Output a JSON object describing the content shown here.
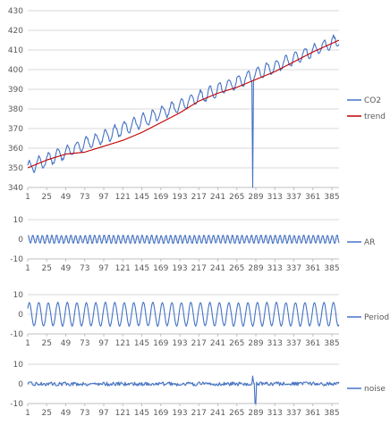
{
  "colors": {
    "series": "#4472C4",
    "trend": "#C00000",
    "grid": "#D9D9D9",
    "axis": "#BFBFBF",
    "text": "#595959"
  },
  "chart_data": [
    {
      "type": "line",
      "x_start": 1,
      "x_end": 394,
      "x_tick_labels": [
        "1",
        "25",
        "49",
        "73",
        "97",
        "121",
        "145",
        "169",
        "193",
        "217",
        "241",
        "265",
        "289",
        "313",
        "337",
        "361",
        "385"
      ],
      "ylim": [
        340,
        430
      ],
      "y_ticks": [
        340,
        350,
        360,
        370,
        380,
        390,
        400,
        410,
        420,
        430
      ],
      "grid": "horizontal",
      "legend_position": "right",
      "series": [
        {
          "name": "CO2",
          "color": "#4472C4",
          "trend_start": 350,
          "trend_end": 415,
          "seasonal_amplitude": 3.2,
          "period": 12,
          "dip": {
            "x": 285,
            "y": 340
          }
        },
        {
          "name": "trend",
          "color": "#C00000",
          "points": [
            [
              1,
              350
            ],
            [
              25,
              354
            ],
            [
              49,
              357
            ],
            [
              73,
              358
            ],
            [
              97,
              361
            ],
            [
              121,
              364
            ],
            [
              145,
              368
            ],
            [
              169,
              373
            ],
            [
              193,
              378
            ],
            [
              217,
              384
            ],
            [
              241,
              388
            ],
            [
              265,
              391
            ],
            [
              289,
              395
            ],
            [
              313,
              399
            ],
            [
              337,
              404
            ],
            [
              361,
              409
            ],
            [
              394,
              415
            ]
          ]
        }
      ]
    },
    {
      "type": "line",
      "x_start": 1,
      "x_end": 394,
      "x_tick_labels": [
        "1",
        "25",
        "49",
        "73",
        "97",
        "121",
        "145",
        "169",
        "193",
        "217",
        "241",
        "265",
        "289",
        "313",
        "337",
        "361",
        "385"
      ],
      "ylim": [
        -10,
        10
      ],
      "y_ticks": [
        -10,
        0,
        10
      ],
      "grid": "horizontal",
      "legend_position": "right",
      "series": [
        {
          "name": "AR",
          "color": "#4472C4",
          "amplitude": 2.2,
          "period": 6
        }
      ]
    },
    {
      "type": "line",
      "x_start": 1,
      "x_end": 394,
      "x_tick_labels": [
        "1",
        "25",
        "49",
        "73",
        "97",
        "121",
        "145",
        "169",
        "193",
        "217",
        "241",
        "265",
        "289",
        "313",
        "337",
        "361",
        "385"
      ],
      "ylim": [
        -10,
        10
      ],
      "y_ticks": [
        -10,
        0,
        10
      ],
      "grid": "horizontal",
      "legend_position": "right",
      "series": [
        {
          "name": "Period",
          "color": "#4472C4",
          "amplitude": 6,
          "period": 12
        }
      ]
    },
    {
      "type": "line",
      "x_start": 1,
      "x_end": 394,
      "x_tick_labels": [
        "1",
        "25",
        "49",
        "73",
        "97",
        "121",
        "145",
        "169",
        "193",
        "217",
        "241",
        "265",
        "289",
        "313",
        "337",
        "361",
        "385"
      ],
      "ylim": [
        -10,
        10
      ],
      "y_ticks": [
        -10,
        0,
        10
      ],
      "grid": "horizontal",
      "legend_position": "right",
      "series": [
        {
          "name": "noise",
          "color": "#4472C4",
          "amplitude": 1,
          "spikes": [
            {
              "x": 285,
              "y": 4
            },
            {
              "x": 288,
              "y": -10
            },
            {
              "x": 289,
              "y": -10
            }
          ]
        }
      ]
    }
  ]
}
